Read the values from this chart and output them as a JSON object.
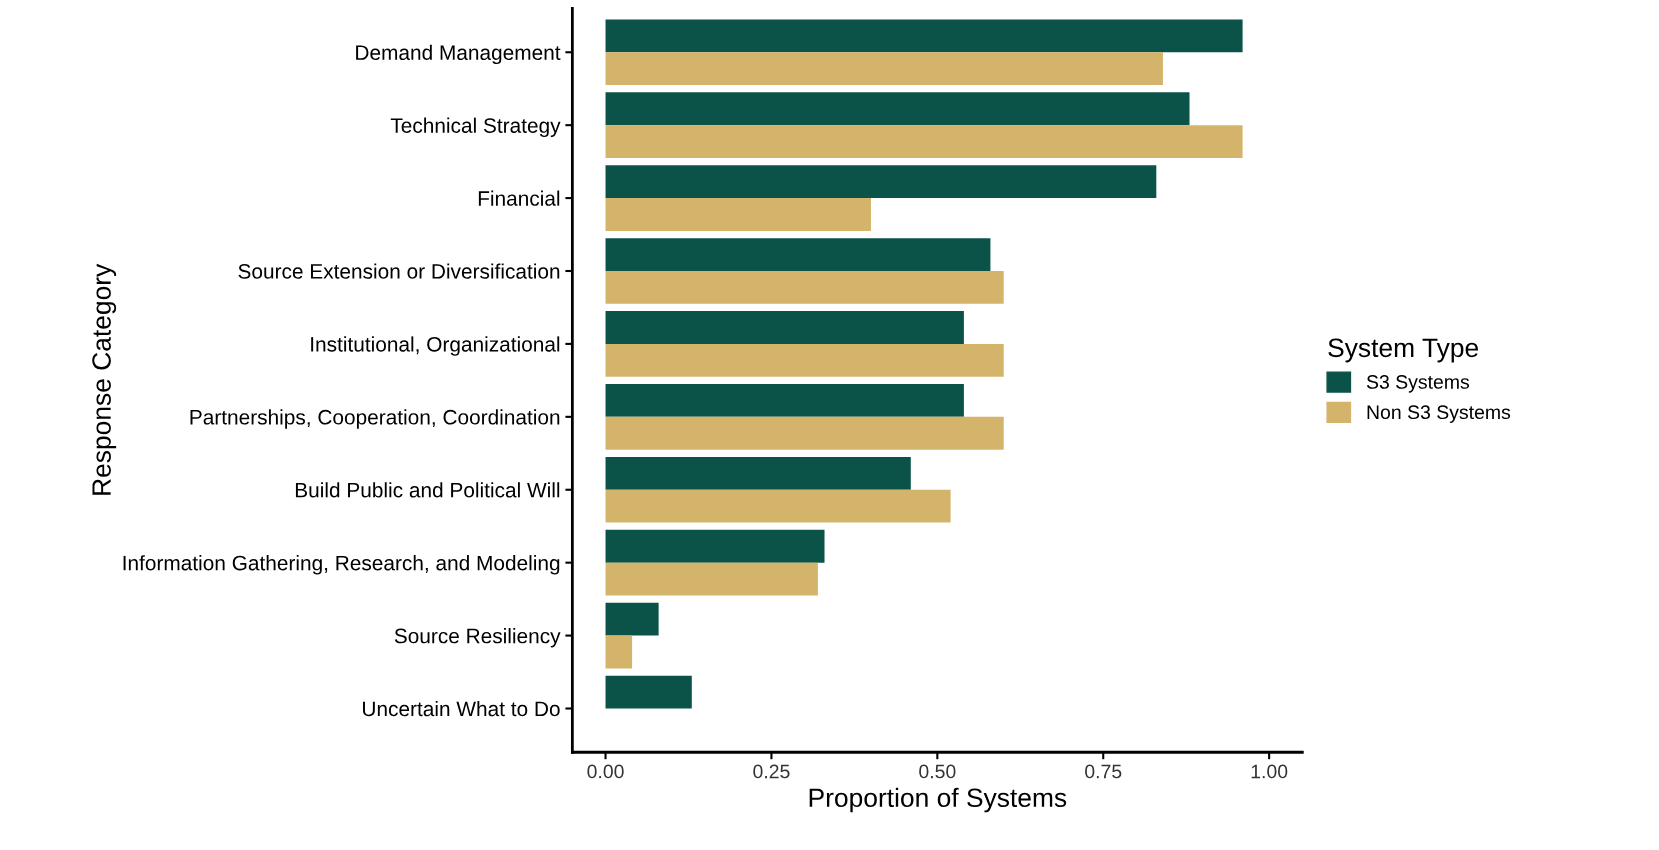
{
  "chart_data": {
    "type": "bar",
    "orientation": "horizontal",
    "xlabel": "Proportion of Systems",
    "ylabel": "Response Category",
    "legend_title": "System Type",
    "legend": "right",
    "categories": [
      "Demand Management",
      "Technical Strategy",
      "Financial",
      "Source Extension or Diversification",
      "Institutional, Organizational",
      "Partnerships, Cooperation, Coordination",
      "Build Public and Political Will",
      "Information Gathering, Research, and Modeling",
      "Source Resiliency",
      "Uncertain What to Do"
    ],
    "series": [
      {
        "name": "S3 Systems",
        "color": "#0b5349",
        "values": [
          0.96,
          0.88,
          0.83,
          0.58,
          0.54,
          0.54,
          0.46,
          0.33,
          0.08,
          0.13
        ]
      },
      {
        "name": "Non S3 Systems",
        "color": "#d4b46a",
        "values": [
          0.84,
          0.96,
          0.4,
          0.6,
          0.6,
          0.6,
          0.52,
          0.32,
          0.04,
          0
        ]
      }
    ],
    "xlim": [
      -0.05,
      1.05
    ],
    "xticks": [
      {
        "value": 0,
        "label": "0.00"
      },
      {
        "value": 0.25,
        "label": "0.25"
      },
      {
        "value": 0.5,
        "label": "0.50"
      },
      {
        "value": 0.75,
        "label": "0.75"
      },
      {
        "value": 1,
        "label": "1.00"
      }
    ],
    "grid": false
  }
}
